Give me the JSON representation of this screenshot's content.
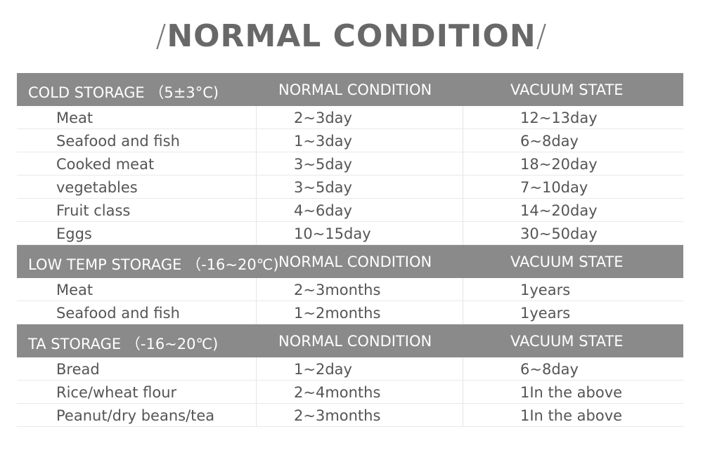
{
  "title": {
    "left_slash": "/",
    "text": "NORMAL CONDITION",
    "right_slash": "/"
  },
  "sections": [
    {
      "header": [
        "COLD  STORAGE （5±3°C)",
        "NORMAL CONDITION",
        "VACUUM STATE"
      ],
      "rows": [
        [
          "Meat",
          "2~3day",
          "12~13day"
        ],
        [
          "Seafood and fish",
          "1~3day",
          "6~8day"
        ],
        [
          "Cooked meat",
          "3~5day",
          "18~20day"
        ],
        [
          "vegetables",
          "3~5day",
          "7~10day"
        ],
        [
          "Fruit class",
          "4~6day",
          "14~20day"
        ],
        [
          "Eggs",
          "10~15day",
          "30~50day"
        ]
      ]
    },
    {
      "header": [
        "LOW TEMP STORAGE （-16~20℃)",
        "NORMAL CONDITION",
        "VACUUM STATE"
      ],
      "rows": [
        [
          "Meat",
          "2~3months",
          "1years"
        ],
        [
          "Seafood and fish",
          "1~2months",
          "1years"
        ]
      ]
    },
    {
      "header": [
        "TA STORAGE （-16~20℃)",
        "NORMAL CONDITION",
        "VACUUM STATE"
      ],
      "rows": [
        [
          "Bread",
          "1~2day",
          "6~8day"
        ],
        [
          "Rice/wheat flour",
          "2~4months",
          "1In the above"
        ],
        [
          "Peanut/dry beans/tea",
          "2~3months",
          "1In the above"
        ]
      ]
    }
  ]
}
